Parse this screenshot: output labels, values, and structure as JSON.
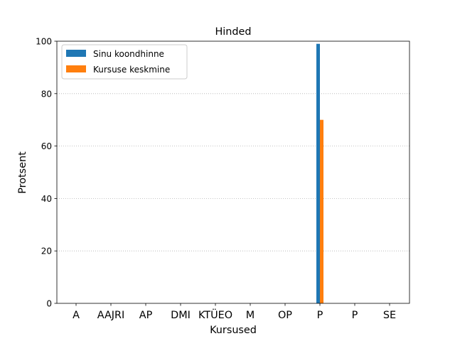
{
  "chart_data": {
    "type": "bar",
    "title": "Hinded",
    "xlabel": "Kursused",
    "ylabel": "Protsent",
    "ylim": [
      0,
      100
    ],
    "yticks": [
      0,
      20,
      40,
      60,
      80,
      100
    ],
    "grid": "y-dotted",
    "legend_position": "top-left",
    "categories": [
      "A",
      "AAJRI",
      "AP",
      "DMI",
      "KTÜEO",
      "M",
      "OP",
      "P",
      "P",
      "SE"
    ],
    "series": [
      {
        "name": "Sinu koondhinne",
        "color": "#1f77b4",
        "values": [
          0,
          0,
          0,
          0,
          0,
          0,
          0,
          99,
          0,
          0
        ]
      },
      {
        "name": "Kursuse keskmine",
        "color": "#ff7f0e",
        "values": [
          0,
          0,
          0,
          0,
          0,
          0,
          0,
          70,
          0,
          0
        ]
      }
    ]
  }
}
